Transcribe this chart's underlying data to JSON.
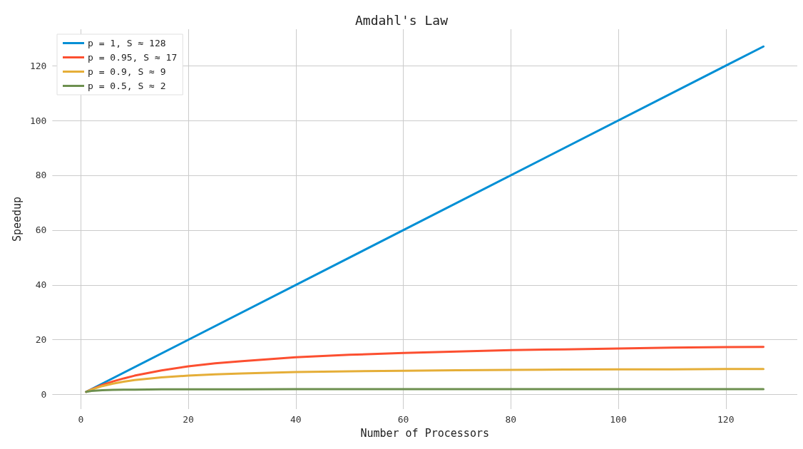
{
  "chart_data": {
    "type": "line",
    "title": "Amdahl's Law",
    "xlabel": "Number of Processors",
    "ylabel": "Speedup",
    "xlim": [
      -5.3,
      133.3
    ],
    "xticks": [
      0,
      20,
      40,
      60,
      80,
      100,
      120
    ],
    "ylim": [
      -5.3,
      133.3
    ],
    "yticks": [
      0,
      20,
      40,
      60,
      80,
      100,
      120
    ],
    "grid": true,
    "legend": "top left",
    "marker": "none",
    "line_style": "solid",
    "series": [
      {
        "name": "p = 1, S ≈ 128",
        "color": "#008fd5",
        "x": [
          1,
          127
        ],
        "values": [
          1,
          127
        ]
      },
      {
        "name": "p = 0.95, S ≈ 17",
        "color": "#fc4f30",
        "x": [
          1,
          2,
          4,
          6,
          8,
          10,
          15,
          20,
          25,
          30,
          40,
          50,
          60,
          70,
          80,
          90,
          100,
          110,
          120,
          127
        ],
        "values": [
          1,
          1.9,
          3.5,
          4.8,
          5.9,
          6.9,
          8.8,
          10.3,
          11.4,
          12.2,
          13.6,
          14.5,
          15.2,
          15.7,
          16.2,
          16.5,
          16.8,
          17.1,
          17.3,
          17.4
        ]
      },
      {
        "name": "p = 0.9, S ≈ 9",
        "color": "#e5ae38",
        "x": [
          1,
          2,
          4,
          6,
          8,
          10,
          15,
          20,
          25,
          30,
          40,
          50,
          60,
          70,
          80,
          90,
          100,
          110,
          120,
          127
        ],
        "values": [
          1,
          1.8,
          3.1,
          4,
          4.7,
          5.3,
          6.3,
          6.9,
          7.4,
          7.7,
          8.2,
          8.5,
          8.7,
          8.9,
          9,
          9.1,
          9.2,
          9.2,
          9.3,
          9.3
        ]
      },
      {
        "name": "p = 0.5, S ≈ 2",
        "color": "#6d904f",
        "x": [
          1,
          2,
          4,
          6,
          8,
          10,
          15,
          20,
          25,
          30,
          40,
          50,
          60,
          70,
          80,
          90,
          100,
          110,
          120,
          127
        ],
        "values": [
          1,
          1.3,
          1.6,
          1.7,
          1.8,
          1.8,
          1.9,
          1.9,
          1.9,
          1.9,
          2,
          2,
          2,
          2,
          2,
          2,
          2,
          2,
          2,
          2
        ]
      }
    ]
  }
}
